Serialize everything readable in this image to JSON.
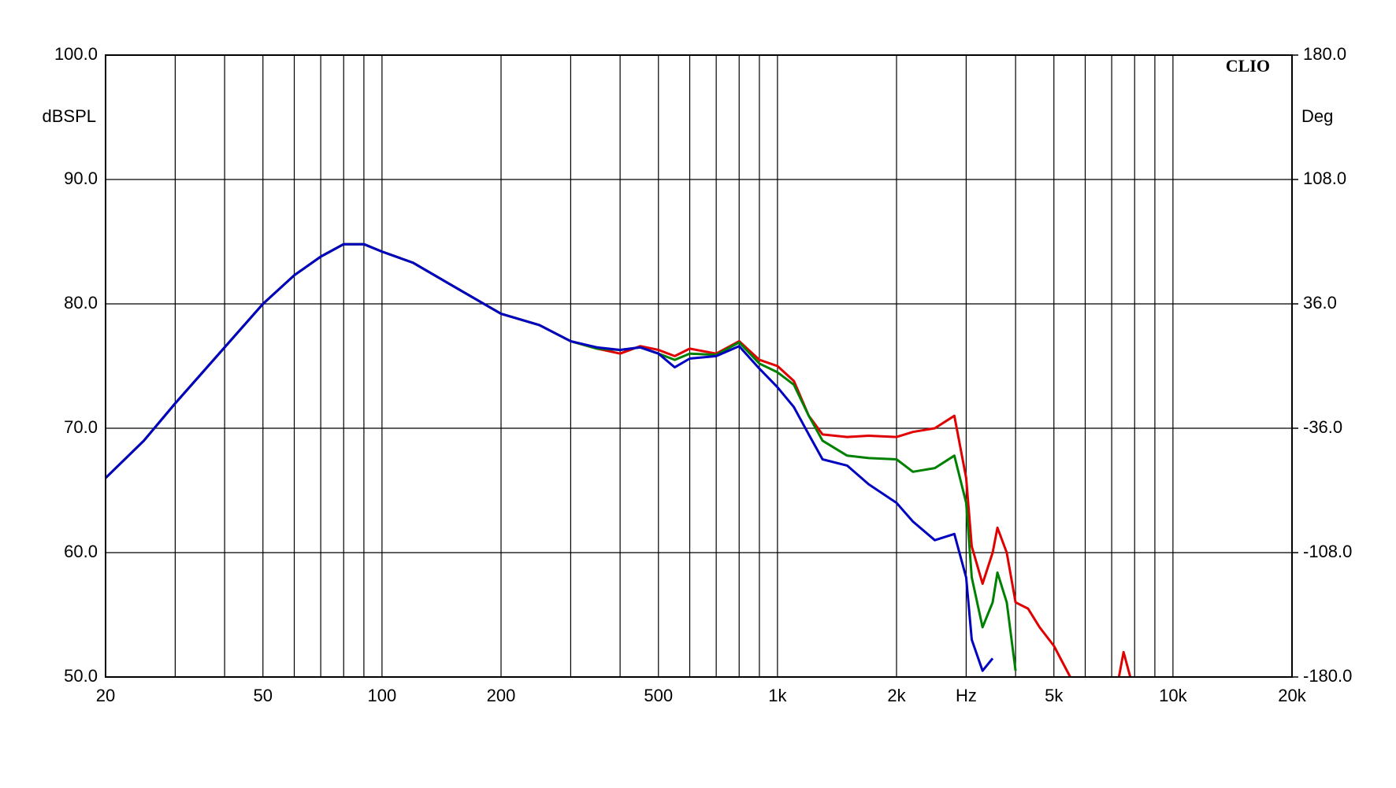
{
  "chart_data": {
    "type": "line",
    "x_log": true,
    "grid": true,
    "annotation": "CLIO",
    "ylabel": "dBSPL",
    "y2label": "Deg",
    "xlim": [
      20,
      20000
    ],
    "ylim": [
      50,
      100
    ],
    "y2lim": [
      -180,
      180
    ],
    "xticks": [
      20,
      50,
      100,
      200,
      500,
      {
        "value": 1000,
        "label": "1k"
      },
      {
        "value": 2000,
        "label": "2k"
      },
      {
        "value": 3000,
        "label": "Hz"
      },
      {
        "value": 5000,
        "label": "5k"
      },
      {
        "value": 10000,
        "label": "10k"
      },
      {
        "value": 20000,
        "label": "20k"
      }
    ],
    "x_minor_grid": [
      30,
      40,
      60,
      70,
      80,
      90,
      300,
      400,
      600,
      700,
      800,
      900,
      4000,
      6000,
      7000,
      8000,
      9000
    ],
    "yticks": [
      {
        "value": 50,
        "label": "50.0"
      },
      {
        "value": 60,
        "label": "60.0"
      },
      {
        "value": 70,
        "label": "70.0"
      },
      {
        "value": 80,
        "label": "80.0"
      },
      {
        "value": 90,
        "label": "90.0"
      },
      {
        "value": 100,
        "label": "100.0"
      }
    ],
    "y2ticks": [
      {
        "value": -180,
        "label": "-180.0"
      },
      {
        "value": -108,
        "label": "-108.0"
      },
      {
        "value": -36,
        "label": "-36.0"
      },
      {
        "value": 36,
        "label": "36.0"
      },
      {
        "value": 108,
        "label": "108.0"
      },
      {
        "value": 180,
        "label": "180.0"
      }
    ],
    "x": [
      20,
      25,
      30,
      40,
      50,
      60,
      70,
      80,
      90,
      100,
      120,
      150,
      200,
      250,
      300,
      350,
      400,
      450,
      500,
      550,
      600,
      700,
      800,
      900,
      1000,
      1100,
      1200,
      1300,
      1500,
      1700,
      2000,
      2200,
      2500,
      2800,
      3000,
      3100,
      3300,
      3500,
      3600,
      3800,
      4000,
      4300,
      4600,
      5000,
      5500,
      6000,
      7300,
      7500,
      7800
    ],
    "series": [
      {
        "color": "#e00000",
        "values": [
          66,
          69,
          72,
          76.5,
          80,
          82.3,
          83.8,
          84.8,
          84.8,
          84.2,
          83.3,
          81.5,
          79.2,
          78.3,
          77,
          76.4,
          76,
          76.6,
          76.3,
          75.8,
          76.4,
          76,
          77,
          75.5,
          75,
          73.8,
          71,
          69.5,
          69.3,
          69.4,
          69.3,
          69.7,
          70,
          71,
          66,
          60.5,
          57.5,
          60,
          62,
          60,
          56,
          55.5,
          54,
          52.5,
          50,
          null,
          50,
          52,
          50
        ]
      },
      {
        "color": "#008000",
        "values": [
          66,
          69,
          72,
          76.5,
          80,
          82.3,
          83.8,
          84.8,
          84.8,
          84.2,
          83.3,
          81.5,
          79.2,
          78.3,
          77,
          76.4,
          76.3,
          76.5,
          76,
          75.5,
          76,
          75.9,
          76.9,
          75.2,
          74.5,
          73.5,
          71,
          69,
          67.8,
          67.6,
          67.5,
          66.5,
          66.8,
          67.8,
          64,
          58,
          54,
          56,
          58.4,
          56,
          50.5,
          null,
          null,
          null,
          null,
          null,
          null,
          null,
          null
        ]
      },
      {
        "color": "#0000c0",
        "values": [
          66,
          69,
          72,
          76.5,
          80,
          82.3,
          83.8,
          84.8,
          84.8,
          84.2,
          83.3,
          81.5,
          79.2,
          78.3,
          77,
          76.5,
          76.3,
          76.5,
          76,
          74.9,
          75.6,
          75.8,
          76.6,
          74.8,
          73.3,
          71.7,
          69.5,
          67.5,
          67,
          65.5,
          64,
          62.5,
          61,
          61.5,
          58,
          53,
          50.5,
          51.5,
          null,
          null,
          null,
          null,
          null,
          null,
          null,
          null,
          null,
          null,
          null
        ]
      }
    ]
  }
}
